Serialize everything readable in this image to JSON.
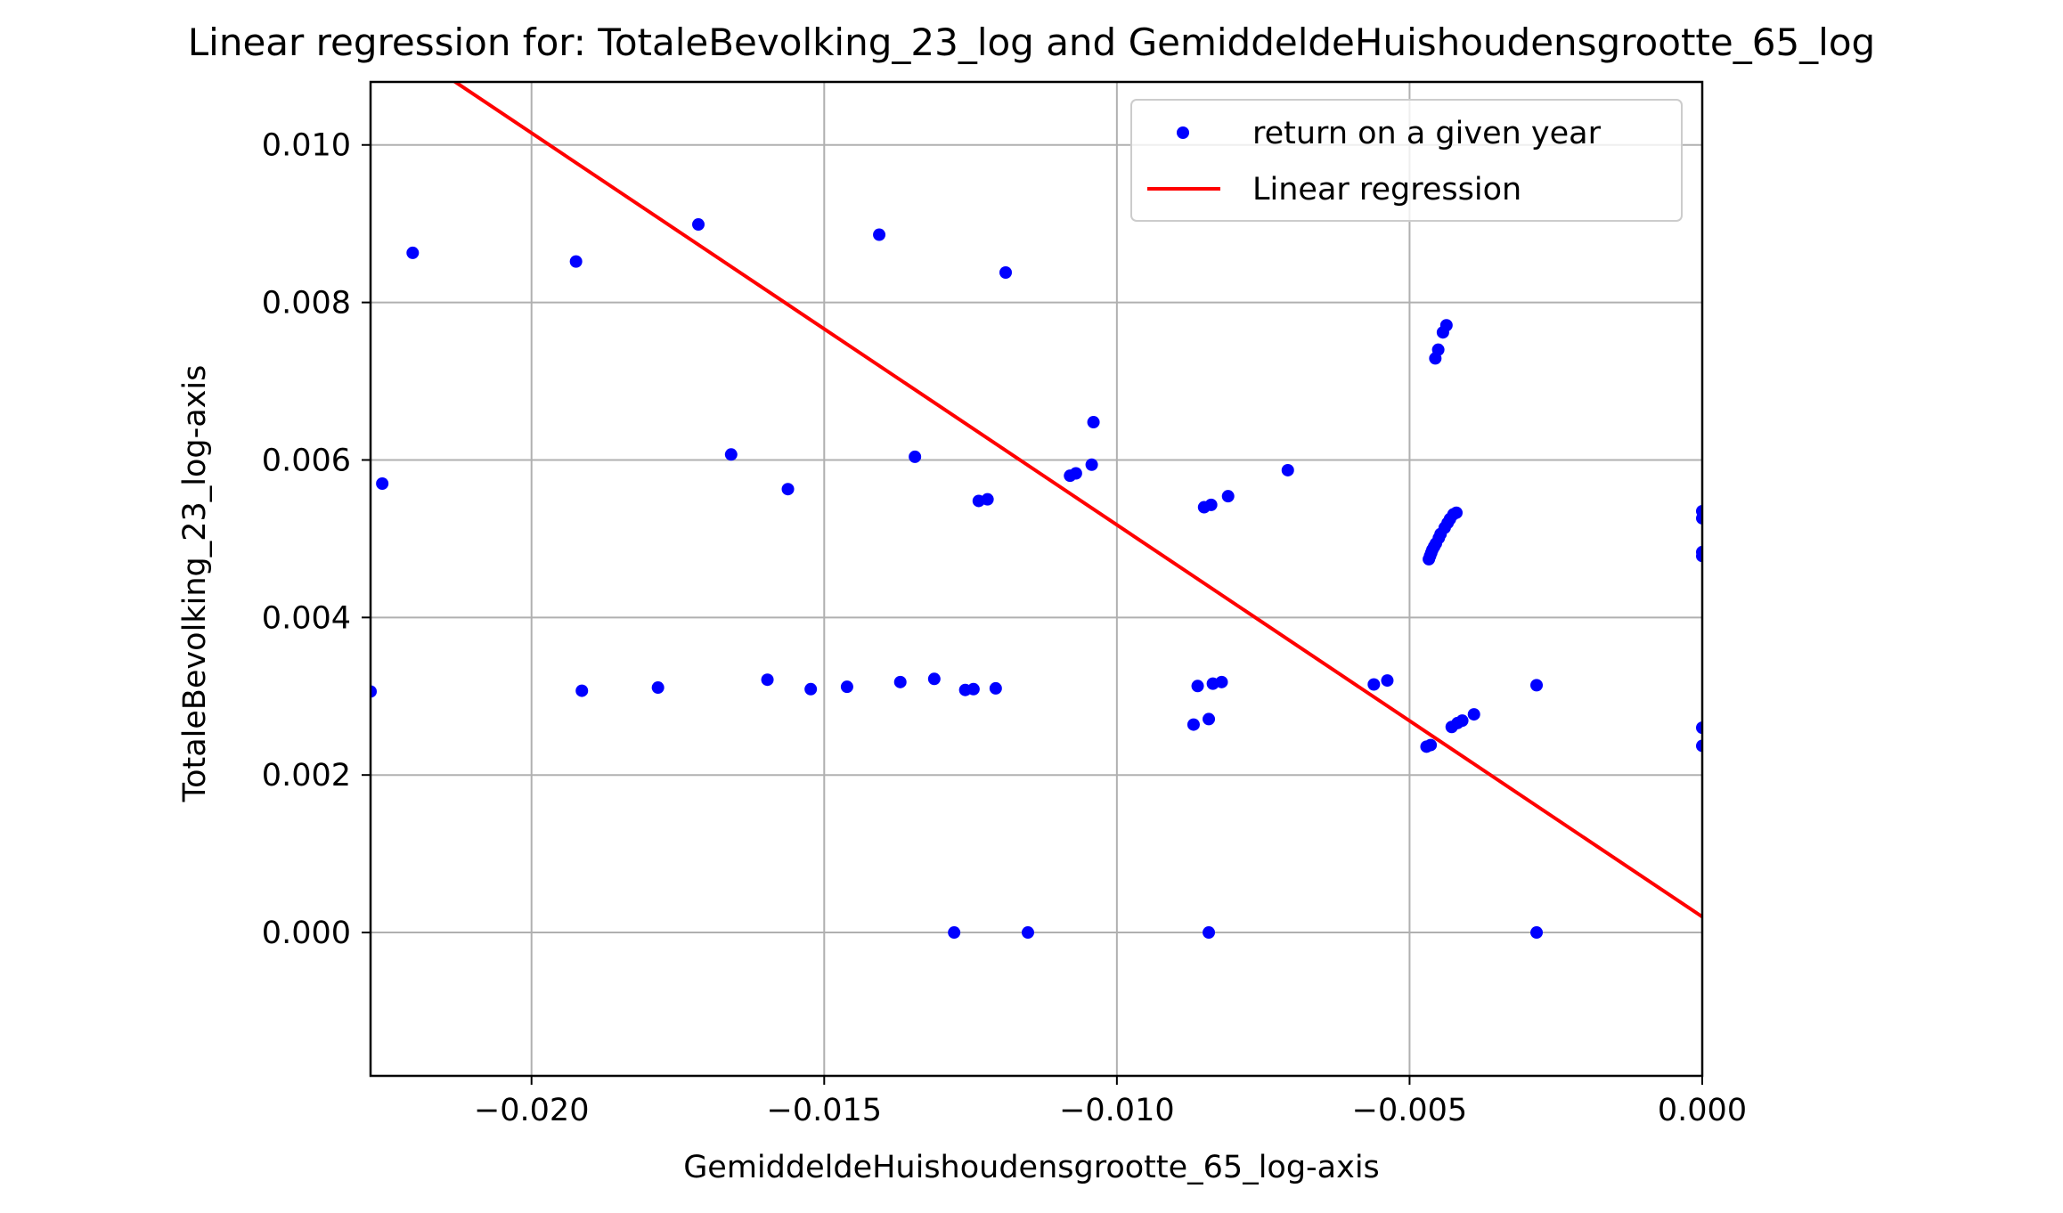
{
  "chart_data": {
    "type": "scatter",
    "title": "Linear regression for: TotaleBevolking_23_log and GemiddeldeHuishoudensgrootte_65_log",
    "xlabel": "GemiddeldeHuishoudensgrootte_65_log-axis",
    "ylabel": "TotaleBevolking_23_log-axis",
    "xlim": [
      -0.02275,
      0.0
    ],
    "ylim": [
      -0.00182,
      0.0108
    ],
    "xticks": [
      -0.02,
      -0.015,
      -0.01,
      -0.005,
      0.0
    ],
    "xtick_labels": [
      "−0.020",
      "−0.015",
      "−0.010",
      "−0.005",
      "0.000"
    ],
    "yticks": [
      0.0,
      0.002,
      0.004,
      0.006,
      0.008,
      0.01
    ],
    "ytick_labels": [
      "0.000",
      "0.002",
      "0.004",
      "0.006",
      "0.008",
      "0.010"
    ],
    "grid": true,
    "legend_position": "top-right",
    "colors": {
      "points": "#0000ff",
      "regression": "#ff0000",
      "grid": "#b0b0b0"
    },
    "series": [
      {
        "name": "return on a given year",
        "kind": "scatter",
        "points": [
          [
            -0.02275,
            0.00306
          ],
          [
            -0.02255,
            0.0057
          ],
          [
            -0.02203,
            0.00863
          ],
          [
            -0.01924,
            0.00852
          ],
          [
            -0.01914,
            0.00307
          ],
          [
            -0.01784,
            0.00311
          ],
          [
            -0.01715,
            0.00899
          ],
          [
            -0.01659,
            0.00607
          ],
          [
            -0.01597,
            0.00321
          ],
          [
            -0.01562,
            0.00563
          ],
          [
            -0.01523,
            0.00309
          ],
          [
            -0.01461,
            0.00312
          ],
          [
            -0.01406,
            0.00886
          ],
          [
            -0.0137,
            0.00318
          ],
          [
            -0.01345,
            0.00604
          ],
          [
            -0.01312,
            0.00322
          ],
          [
            -0.01278,
            0.0
          ],
          [
            -0.01259,
            0.00308
          ],
          [
            -0.01245,
            0.00309
          ],
          [
            -0.01236,
            0.00548
          ],
          [
            -0.01221,
            0.0055
          ],
          [
            -0.01207,
            0.0031
          ],
          [
            -0.0119,
            0.00838
          ],
          [
            -0.01152,
            0.0
          ],
          [
            -0.0108,
            0.0058
          ],
          [
            -0.0107,
            0.00583
          ],
          [
            -0.01043,
            0.00594
          ],
          [
            -0.0104,
            0.00648
          ],
          [
            -0.00869,
            0.00264
          ],
          [
            -0.00862,
            0.00313
          ],
          [
            -0.00851,
            0.0054
          ],
          [
            -0.00843,
            0.00271
          ],
          [
            -0.00843,
            0.0
          ],
          [
            -0.00839,
            0.00543
          ],
          [
            -0.00836,
            0.00316
          ],
          [
            -0.00821,
            0.00318
          ],
          [
            -0.0081,
            0.00554
          ],
          [
            -0.00708,
            0.00587
          ],
          [
            -0.00561,
            0.00315
          ],
          [
            -0.00538,
            0.0032
          ],
          [
            -0.00471,
            0.00236
          ],
          [
            -0.00467,
            0.00474
          ],
          [
            -0.00465,
            0.00478
          ],
          [
            -0.00464,
            0.00238
          ],
          [
            -0.00463,
            0.00482
          ],
          [
            -0.00461,
            0.00486
          ],
          [
            -0.00458,
            0.0049
          ],
          [
            -0.00456,
            0.00729
          ],
          [
            -0.00455,
            0.00494
          ],
          [
            -0.00451,
            0.0074
          ],
          [
            -0.0045,
            0.00501
          ],
          [
            -0.00447,
            0.00506
          ],
          [
            -0.00443,
            0.00762
          ],
          [
            -0.0044,
            0.00514
          ],
          [
            -0.00437,
            0.00771
          ],
          [
            -0.00435,
            0.0052
          ],
          [
            -0.00431,
            0.00525
          ],
          [
            -0.00428,
            0.00261
          ],
          [
            -0.00425,
            0.00531
          ],
          [
            -0.0042,
            0.00533
          ],
          [
            -0.00418,
            0.00266
          ],
          [
            -0.0041,
            0.00269
          ],
          [
            -0.0039,
            0.00277
          ],
          [
            -0.00283,
            0.00314
          ],
          [
            -0.00283,
            0.0
          ],
          [
            0.0,
            0.00535
          ],
          [
            0.0,
            0.00526
          ],
          [
            0.0,
            0.00483
          ],
          [
            0.0,
            0.00478
          ],
          [
            0.0,
            0.0026
          ],
          [
            0.0,
            0.00237
          ]
        ]
      },
      {
        "name": "Linear regression",
        "kind": "line",
        "points": [
          [
            -0.02275,
            0.01152
          ],
          [
            0.0,
            0.0002
          ]
        ]
      }
    ]
  }
}
